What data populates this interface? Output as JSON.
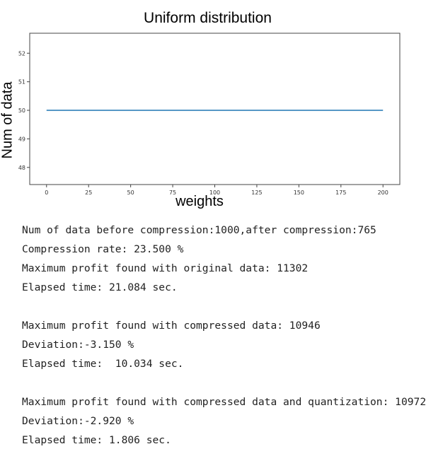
{
  "chart_data": {
    "type": "line",
    "title": "Uniform distribution",
    "xlabel": "weights",
    "ylabel": "Num of data",
    "x": [
      0,
      200
    ],
    "series": [
      {
        "values": [
          50,
          50
        ],
        "color": "#1f77b4"
      }
    ],
    "xlim": [
      -10,
      210
    ],
    "ylim": [
      47.4,
      52.7
    ],
    "xticks": [
      0,
      25,
      50,
      75,
      100,
      125,
      150,
      175,
      200
    ],
    "yticks": [
      48,
      49,
      50,
      51,
      52
    ],
    "grid": false
  },
  "console": {
    "lines": [
      "Num of data before compression:1000,after compression:765",
      "Compression rate: 23.500 %",
      "Maximum profit found with original data: 11302",
      "Elapsed time: 21.084 sec.",
      "",
      "Maximum profit found with compressed data: 10946",
      "Deviation:-3.150 %",
      "Elapsed time:  10.034 sec.",
      "",
      "Maximum profit found with compressed data and quantization: 10972",
      "Deviation:-2.920 %",
      "Elapsed time: 1.806 sec."
    ]
  }
}
